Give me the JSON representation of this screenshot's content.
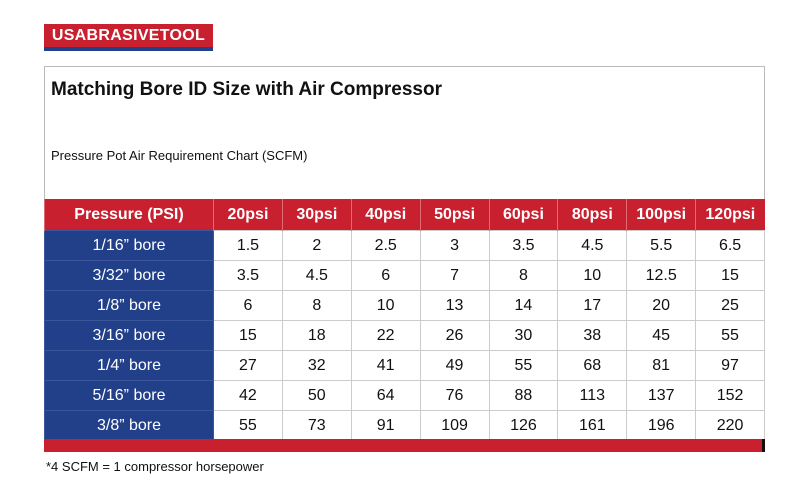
{
  "header": {
    "logo": "USABRASIVETOOL",
    "title": "Matching Bore ID Size with Air Compressor",
    "subtitle": "Pressure Pot Air Requirement Chart (SCFM)"
  },
  "table": {
    "columns": [
      "Pressure (PSI)",
      "20psi",
      "30psi",
      "40psi",
      "50psi",
      "60psi",
      "80psi",
      "100psi",
      "120psi"
    ],
    "rows": [
      [
        "1/16” bore",
        1.5,
        2,
        2.5,
        3,
        3.5,
        4.5,
        5.5,
        6.5
      ],
      [
        "3/32” bore",
        3.5,
        4.5,
        6,
        7,
        8,
        10,
        12.5,
        15
      ],
      [
        "1/8” bore",
        6,
        8,
        10,
        13,
        14,
        17,
        20,
        25
      ],
      [
        "3/16” bore",
        15,
        18,
        22,
        26,
        30,
        38,
        45,
        55
      ],
      [
        "1/4” bore",
        27,
        32,
        41,
        49,
        55,
        68,
        81,
        97
      ],
      [
        "5/16” bore",
        42,
        50,
        64,
        76,
        88,
        113,
        137,
        152
      ],
      [
        "3/8” bore",
        55,
        73,
        91,
        109,
        126,
        161,
        196,
        220
      ]
    ]
  },
  "footnote": "*4 SCFM = 1 compressor horsepower"
}
